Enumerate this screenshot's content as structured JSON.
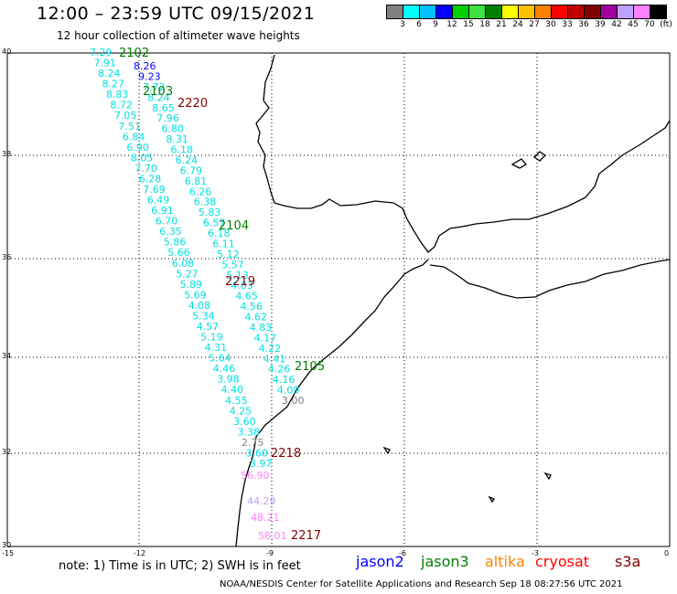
{
  "header": {
    "title": "12:00 – 23:59 UTC 09/15/2021",
    "subtitle": "12 hour collection of altimeter wave heights"
  },
  "color_scale": {
    "colors": [
      "#808080",
      "#00ffff",
      "#00c0ff",
      "#0000ff",
      "#00d000",
      "#40e040",
      "#008000",
      "#ffff00",
      "#ffc000",
      "#ff8000",
      "#ff0000",
      "#c00000",
      "#800000",
      "#a000a0",
      "#c0a0ff",
      "#ff80ff",
      "#000000"
    ],
    "labels": [
      "3",
      "6",
      "9",
      "12",
      "15",
      "18",
      "21",
      "24",
      "27",
      "30",
      "33",
      "36",
      "39",
      "42",
      "45",
      "70",
      "(ft)"
    ]
  },
  "axes": {
    "lat_labels": [
      "40",
      "38",
      "36",
      "34",
      "32",
      "30"
    ],
    "lon_labels": [
      "-15",
      "-12",
      "-9",
      "-6",
      "-3",
      "0"
    ]
  },
  "passes": [
    {
      "label": "2102",
      "color": "#008000"
    },
    {
      "label": "2103",
      "color": "#008000"
    },
    {
      "label": "2220",
      "color": "#800000"
    },
    {
      "label": "2104",
      "color": "#008000"
    },
    {
      "label": "2219",
      "color": "#800000"
    },
    {
      "label": "2105",
      "color": "#008000"
    },
    {
      "label": "2218",
      "color": "#800000"
    },
    {
      "label": "2217",
      "color": "#800000"
    }
  ],
  "track_values": [
    {
      "v": "7.29",
      "c": "#00e0e0"
    },
    {
      "v": "7.91",
      "c": "#00e0e0"
    },
    {
      "v": "8.24",
      "c": "#00e0e0"
    },
    {
      "v": "8.27",
      "c": "#00e0e0"
    },
    {
      "v": "8.83",
      "c": "#00e0e0"
    },
    {
      "v": "8.72",
      "c": "#00e0e0"
    },
    {
      "v": "7.05",
      "c": "#00e0e0"
    },
    {
      "v": "7.51",
      "c": "#00e0e0"
    },
    {
      "v": "6.84",
      "c": "#00e0e0"
    },
    {
      "v": "6.90",
      "c": "#00e0e0"
    },
    {
      "v": "8.05",
      "c": "#00e0e0"
    },
    {
      "v": "7.70",
      "c": "#00e0e0"
    },
    {
      "v": "6.28",
      "c": "#00e0e0"
    },
    {
      "v": "7.69",
      "c": "#00e0e0"
    },
    {
      "v": "6.49",
      "c": "#00e0e0"
    },
    {
      "v": "6.91",
      "c": "#00e0e0"
    },
    {
      "v": "6.70",
      "c": "#00e0e0"
    },
    {
      "v": "6.35",
      "c": "#00e0e0"
    },
    {
      "v": "5.86",
      "c": "#00e0e0"
    },
    {
      "v": "5.66",
      "c": "#00e0e0"
    },
    {
      "v": "6.08",
      "c": "#00e0e0"
    },
    {
      "v": "5.27",
      "c": "#00e0e0"
    },
    {
      "v": "5.89",
      "c": "#00e0e0"
    },
    {
      "v": "5.69",
      "c": "#00e0e0"
    },
    {
      "v": "4.08",
      "c": "#00e0e0"
    },
    {
      "v": "5.34",
      "c": "#00e0e0"
    },
    {
      "v": "4.57",
      "c": "#00e0e0"
    },
    {
      "v": "5.19",
      "c": "#00e0e0"
    },
    {
      "v": "4.31",
      "c": "#00e0e0"
    },
    {
      "v": "5.64",
      "c": "#00e0e0"
    },
    {
      "v": "4.46",
      "c": "#00e0e0"
    },
    {
      "v": "3.98",
      "c": "#00e0e0"
    },
    {
      "v": "4.40",
      "c": "#00e0e0"
    },
    {
      "v": "4.55",
      "c": "#00e0e0"
    },
    {
      "v": "4.25",
      "c": "#00e0e0"
    },
    {
      "v": "3.60",
      "c": "#00e0e0"
    },
    {
      "v": "3.38",
      "c": "#00e0e0"
    },
    {
      "v": "2.75",
      "c": "#808080"
    },
    {
      "v": "3.60",
      "c": "#00e0e0"
    },
    {
      "v": "3.97",
      "c": "#00e0e0"
    },
    {
      "v": "8.26",
      "c": "#0000ff"
    },
    {
      "v": "9.23",
      "c": "#0000ff"
    },
    {
      "v": "7.72",
      "c": "#00e0e0"
    },
    {
      "v": "8.24",
      "c": "#00e0e0"
    },
    {
      "v": "8.65",
      "c": "#00e0e0"
    },
    {
      "v": "7.96",
      "c": "#00e0e0"
    },
    {
      "v": "6.80",
      "c": "#00e0e0"
    },
    {
      "v": "8.31",
      "c": "#00e0e0"
    },
    {
      "v": "6.18",
      "c": "#00e0e0"
    },
    {
      "v": "6.24",
      "c": "#00e0e0"
    },
    {
      "v": "6.79",
      "c": "#00e0e0"
    },
    {
      "v": "6.81",
      "c": "#00e0e0"
    },
    {
      "v": "6.26",
      "c": "#00e0e0"
    },
    {
      "v": "6.38",
      "c": "#00e0e0"
    },
    {
      "v": "5.83",
      "c": "#00e0e0"
    },
    {
      "v": "6.57",
      "c": "#00e0e0"
    },
    {
      "v": "6.18",
      "c": "#00e0e0"
    },
    {
      "v": "6.11",
      "c": "#00e0e0"
    },
    {
      "v": "5.12",
      "c": "#00e0e0"
    },
    {
      "v": "5.57",
      "c": "#00e0e0"
    },
    {
      "v": "5.13",
      "c": "#00e0e0"
    },
    {
      "v": "4.83",
      "c": "#00e0e0"
    },
    {
      "v": "4.65",
      "c": "#00e0e0"
    },
    {
      "v": "4.56",
      "c": "#00e0e0"
    },
    {
      "v": "4.62",
      "c": "#00e0e0"
    },
    {
      "v": "4.83",
      "c": "#00e0e0"
    },
    {
      "v": "4.17",
      "c": "#00e0e0"
    },
    {
      "v": "4.22",
      "c": "#00e0e0"
    },
    {
      "v": "4.41",
      "c": "#00e0e0"
    },
    {
      "v": "4.26",
      "c": "#00e0e0"
    },
    {
      "v": "4.16",
      "c": "#00e0e0"
    },
    {
      "v": "4.09",
      "c": "#00e0e0"
    },
    {
      "v": "3.00",
      "c": "#808080"
    },
    {
      "v": "56.90",
      "c": "#ff80ff"
    },
    {
      "v": "44.29",
      "c": "#c0a0ff"
    },
    {
      "v": "48.21",
      "c": "#ff80ff"
    },
    {
      "v": "58.01",
      "c": "#ff80ff"
    }
  ],
  "note": "note: 1) Time is in UTC; 2) SWH is in feet",
  "satellites": [
    {
      "name": "jason2",
      "color": "#0000ff"
    },
    {
      "name": "jason3",
      "color": "#008000"
    },
    {
      "name": "altika",
      "color": "#ff8000"
    },
    {
      "name": "cryosat",
      "color": "#ff0000"
    },
    {
      "name": "s3a",
      "color": "#800000"
    }
  ],
  "footer": "NOAA/NESDIS Center for Satellite Applications and Research   Sep 18 08:27:56 UTC 2021"
}
